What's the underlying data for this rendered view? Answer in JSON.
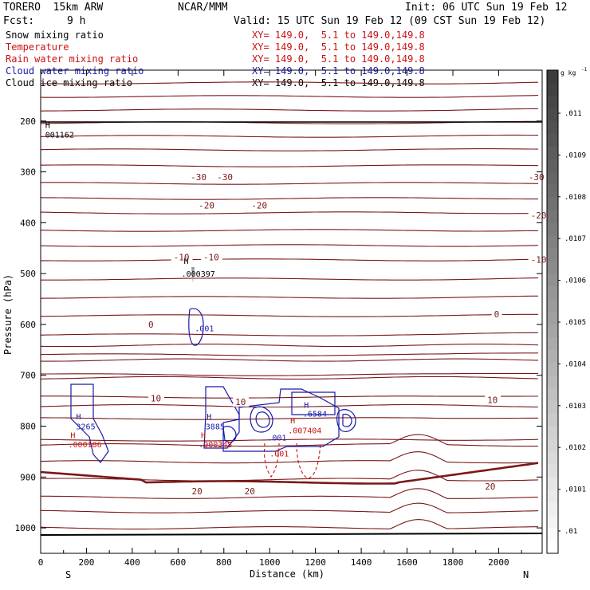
{
  "header": {
    "model": "TORERO  15km ARW",
    "center": "NCAR/MMM",
    "init": "Init: 06 UTC Sun 19 Feb 12",
    "fcst_label": "Fcst:",
    "fcst_value": "9 h",
    "valid": "Valid: 15 UTC Sun 19 Feb 12 (09 CST Sun 19 Feb 12)"
  },
  "legend": [
    {
      "name": "Snow mixing ratio",
      "color": "#000000",
      "xy": "XY= 149.0,  5.1 to 149.0,149.8"
    },
    {
      "name": "Temperature",
      "color": "#cc1111",
      "xy": "XY= 149.0,  5.1 to 149.0,149.8"
    },
    {
      "name": "Rain water mixing ratio",
      "color": "#cc1111",
      "xy": "XY= 149.0,  5.1 to 149.0,149.8"
    },
    {
      "name": "Cloud water mixing ratio",
      "color": "#1a1aa8",
      "xy": "XY= 149.0,  5.1 to 149.0,149.8"
    },
    {
      "name": "Cloud ice mixing ratio",
      "color": "#000000",
      "xy": "XY= 149.0,  5.1 to 149.0,149.8"
    }
  ],
  "chart_data": {
    "type": "line",
    "xlabel": "Distance (km)",
    "ylabel": "Pressure (hPa)",
    "xlim": [
      0,
      2190
    ],
    "ylim": [
      1050,
      100
    ],
    "x_ticks": [
      0,
      200,
      400,
      600,
      800,
      1000,
      1200,
      1400,
      1600,
      1800,
      2000
    ],
    "y_ticks": [
      200,
      300,
      400,
      500,
      600,
      700,
      800,
      900,
      1000
    ],
    "x_ends": {
      "left": "S",
      "right": "N"
    },
    "temperature_labels": [
      {
        "text": "-30",
        "x": 655,
        "p": 310
      },
      {
        "text": "-30",
        "x": 770,
        "p": 310
      },
      {
        "text": "-30",
        "x": 2130,
        "p": 310
      },
      {
        "text": "-20",
        "x": 690,
        "p": 366
      },
      {
        "text": "-20",
        "x": 920,
        "p": 366
      },
      {
        "text": "-20",
        "x": 2140,
        "p": 385
      },
      {
        "text": "-10",
        "x": 580,
        "p": 468
      },
      {
        "text": "-10",
        "x": 710,
        "p": 468
      },
      {
        "text": "-10",
        "x": 2140,
        "p": 472
      },
      {
        "text": "0",
        "x": 470,
        "p": 600
      },
      {
        "text": "0",
        "x": 1980,
        "p": 580
      },
      {
        "text": "10",
        "x": 480,
        "p": 745
      },
      {
        "text": "10",
        "x": 850,
        "p": 752
      },
      {
        "text": "10",
        "x": 1950,
        "p": 748
      },
      {
        "text": "20",
        "x": 660,
        "p": 928
      },
      {
        "text": "20",
        "x": 890,
        "p": 928
      },
      {
        "text": "20",
        "x": 1940,
        "p": 918
      }
    ],
    "extrema_labels": [
      {
        "text": "H",
        "x": 20,
        "p": 207,
        "color": "#000000"
      },
      {
        "text": "001162",
        "x": 20,
        "p": 226,
        "color": "#000000"
      },
      {
        "text": "H",
        "x": 625,
        "p": 475,
        "color": "#000000"
      },
      {
        "text": ".000397",
        "x": 615,
        "p": 500,
        "color": "#000000"
      },
      {
        "text": ".001",
        "x": 673,
        "p": 607,
        "color": "#1a1aa8"
      },
      {
        "text": "H",
        "x": 155,
        "p": 780,
        "color": "#1a1aa8"
      },
      {
        "text": "3265",
        "x": 155,
        "p": 800,
        "color": "#1a1aa8"
      },
      {
        "text": "H",
        "x": 130,
        "p": 817,
        "color": "#cc1111"
      },
      {
        "text": ".000186",
        "x": 120,
        "p": 835,
        "color": "#cc1111"
      },
      {
        "text": "H",
        "x": 725,
        "p": 780,
        "color": "#1a1aa8"
      },
      {
        "text": "3885",
        "x": 720,
        "p": 800,
        "color": "#1a1aa8"
      },
      {
        "text": "H",
        "x": 700,
        "p": 817,
        "color": "#cc1111"
      },
      {
        "text": ".000348",
        "x": 690,
        "p": 835,
        "color": "#cc1111"
      },
      {
        "text": ".001",
        "x": 990,
        "p": 822,
        "color": "#1a1aa8"
      },
      {
        "text": ".001",
        "x": 1000,
        "p": 853,
        "color": "#cc1111"
      },
      {
        "text": "H",
        "x": 1090,
        "p": 788,
        "color": "#cc1111"
      },
      {
        "text": ".007404",
        "x": 1080,
        "p": 808,
        "color": "#cc1111"
      },
      {
        "text": "H",
        "x": 1150,
        "p": 758,
        "color": "#1a1aa8"
      },
      {
        "text": ".6584",
        "x": 1145,
        "p": 775,
        "color": "#1a1aa8"
      }
    ],
    "colorbar": {
      "unit_label": "g kg",
      "unit_exp": "-1",
      "labels": [
        ".011",
        ".0109",
        ".0108",
        ".0107",
        ".0106",
        ".0105",
        ".0104",
        ".0103",
        ".0102",
        ".0101",
        ".01"
      ]
    }
  }
}
